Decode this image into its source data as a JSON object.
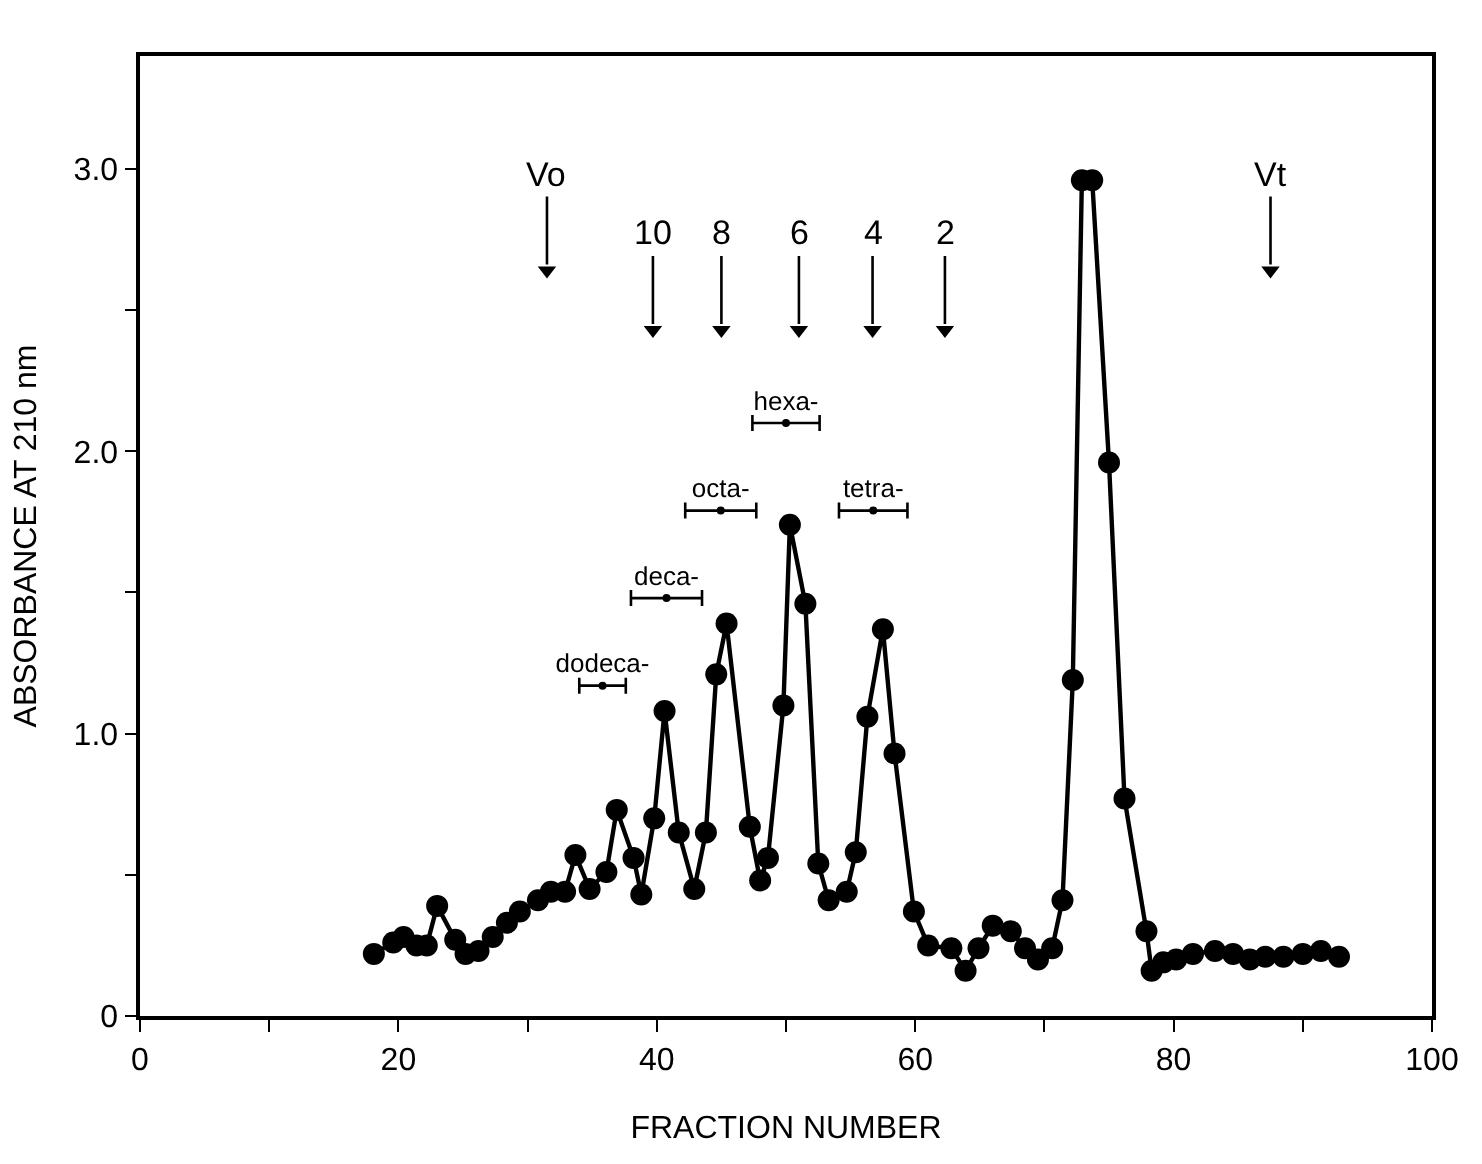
{
  "chart_data": {
    "type": "line",
    "xlabel": "FRACTION NUMBER",
    "ylabel": "ABSORBANCE AT 210 nm",
    "xlim": [
      0,
      100
    ],
    "xticks": [
      0,
      {
        "value": 10,
        "label": null
      },
      20,
      {
        "value": 30,
        "label": null
      },
      40,
      {
        "value": 50,
        "label": null
      },
      60,
      {
        "value": 70,
        "label": null
      },
      80,
      {
        "value": 90,
        "label": null
      },
      100
    ],
    "ylim": [
      0,
      3.4
    ],
    "yticks": [
      {
        "value": 0,
        "label": "0"
      },
      {
        "value": 0.5,
        "label": null
      },
      {
        "value": 1,
        "label": "1.0"
      },
      {
        "value": 1.5,
        "label": null
      },
      {
        "value": 2,
        "label": "2.0"
      },
      {
        "value": 2.5,
        "label": null
      },
      {
        "value": 3,
        "label": "3.0"
      }
    ],
    "marker": "circle",
    "line_style": "solid",
    "series": [
      {
        "color": "#000000",
        "x": [
          18.1,
          19.6,
          20.4,
          21.4,
          22.2,
          23.0,
          24.4,
          25.2,
          26.2,
          27.3,
          28.4,
          29.4,
          30.8,
          31.8,
          32.9,
          33.7,
          34.8,
          36.1,
          36.9,
          38.2,
          38.8,
          39.8,
          40.6,
          41.7,
          42.9,
          43.8,
          44.6,
          45.4,
          47.2,
          48.0,
          48.6,
          49.8,
          50.3,
          51.5,
          52.5,
          53.3,
          54.7,
          55.4,
          56.3,
          57.5,
          58.4,
          59.9,
          61.0,
          62.8,
          63.9,
          64.9,
          66.0,
          67.4,
          68.5,
          69.5,
          70.6,
          71.4,
          72.2,
          72.9,
          73.7,
          75.0,
          76.2,
          77.9,
          78.3,
          79.2,
          80.2,
          81.5,
          83.2,
          84.6,
          85.9,
          87.1,
          88.5,
          90.0,
          91.4,
          92.8
        ],
        "values": [
          0.22,
          0.26,
          0.28,
          0.25,
          0.25,
          0.39,
          0.27,
          0.22,
          0.23,
          0.28,
          0.33,
          0.37,
          0.41,
          0.44,
          0.44,
          0.57,
          0.45,
          0.51,
          0.73,
          0.56,
          0.43,
          0.7,
          1.08,
          0.65,
          0.45,
          0.65,
          1.21,
          1.39,
          0.67,
          0.48,
          0.56,
          1.1,
          1.74,
          1.46,
          0.54,
          0.41,
          0.44,
          0.58,
          1.06,
          1.37,
          0.93,
          0.37,
          0.25,
          0.24,
          0.16,
          0.24,
          0.32,
          0.3,
          0.24,
          0.2,
          0.24,
          0.41,
          1.19,
          2.96,
          2.96,
          1.96,
          0.77,
          0.3,
          0.16,
          0.19,
          0.2,
          0.22,
          0.23,
          0.22,
          0.2,
          0.21,
          0.21,
          0.22,
          0.23,
          0.21
        ]
      },
      {
        "type": "scatter",
        "marker": "triangle",
        "color": "#000000",
        "x": [
          31.5,
          39.7,
          45.0,
          51.0,
          56.7,
          62.3,
          87.5
        ],
        "values": [
          2.64,
          2.43,
          2.43,
          2.43,
          2.43,
          2.43,
          2.64
        ]
      },
      {
        "type": "scatter",
        "marker": "circle",
        "color": "#000000",
        "x": [
          35.8,
          40.75,
          44.95,
          50.0,
          56.75
        ],
        "values": [
          1.17,
          1.48,
          1.79,
          2.1,
          1.79
        ],
        "xerrors": [
          1.8,
          2.75,
          2.75,
          2.6,
          2.65
        ],
        "value_labels": [
          "dodeca-",
          "deca-",
          "octa-",
          "hexa-",
          "tetra-"
        ]
      }
    ],
    "annotations": [
      {
        "text": "Vo",
        "x": 31.5,
        "y": 2.64
      },
      {
        "text": "10",
        "x": 39.7,
        "y": 2.43
      },
      {
        "text": "8",
        "x": 45.0,
        "y": 2.43
      },
      {
        "text": "6",
        "x": 51.0,
        "y": 2.43
      },
      {
        "text": "4",
        "x": 56.7,
        "y": 2.43
      },
      {
        "text": "2",
        "x": 62.3,
        "y": 2.43
      },
      {
        "text": "Vt",
        "x": 87.5,
        "y": 2.64
      }
    ]
  }
}
